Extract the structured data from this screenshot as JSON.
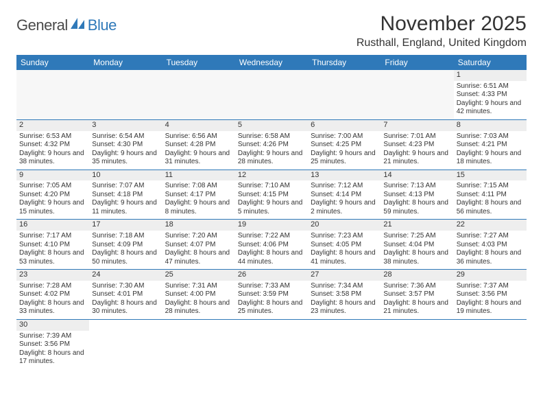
{
  "brand": {
    "part1": "General",
    "part2": "Blue"
  },
  "title": "November 2025",
  "location": "Rusthall, England, United Kingdom",
  "colors": {
    "headerBg": "#2f79b9",
    "headerText": "#ffffff",
    "dayNumBg": "#eeeeee",
    "ruleColor": "#2f79b9",
    "emptyBg": "#f7f7f7"
  },
  "dayHeaders": [
    "Sunday",
    "Monday",
    "Tuesday",
    "Wednesday",
    "Thursday",
    "Friday",
    "Saturday"
  ],
  "weeks": [
    [
      null,
      null,
      null,
      null,
      null,
      null,
      {
        "n": "1",
        "sunrise": "6:51 AM",
        "sunset": "4:33 PM",
        "daylight": "9 hours and 42 minutes."
      }
    ],
    [
      {
        "n": "2",
        "sunrise": "6:53 AM",
        "sunset": "4:32 PM",
        "daylight": "9 hours and 38 minutes."
      },
      {
        "n": "3",
        "sunrise": "6:54 AM",
        "sunset": "4:30 PM",
        "daylight": "9 hours and 35 minutes."
      },
      {
        "n": "4",
        "sunrise": "6:56 AM",
        "sunset": "4:28 PM",
        "daylight": "9 hours and 31 minutes."
      },
      {
        "n": "5",
        "sunrise": "6:58 AM",
        "sunset": "4:26 PM",
        "daylight": "9 hours and 28 minutes."
      },
      {
        "n": "6",
        "sunrise": "7:00 AM",
        "sunset": "4:25 PM",
        "daylight": "9 hours and 25 minutes."
      },
      {
        "n": "7",
        "sunrise": "7:01 AM",
        "sunset": "4:23 PM",
        "daylight": "9 hours and 21 minutes."
      },
      {
        "n": "8",
        "sunrise": "7:03 AM",
        "sunset": "4:21 PM",
        "daylight": "9 hours and 18 minutes."
      }
    ],
    [
      {
        "n": "9",
        "sunrise": "7:05 AM",
        "sunset": "4:20 PM",
        "daylight": "9 hours and 15 minutes."
      },
      {
        "n": "10",
        "sunrise": "7:07 AM",
        "sunset": "4:18 PM",
        "daylight": "9 hours and 11 minutes."
      },
      {
        "n": "11",
        "sunrise": "7:08 AM",
        "sunset": "4:17 PM",
        "daylight": "9 hours and 8 minutes."
      },
      {
        "n": "12",
        "sunrise": "7:10 AM",
        "sunset": "4:15 PM",
        "daylight": "9 hours and 5 minutes."
      },
      {
        "n": "13",
        "sunrise": "7:12 AM",
        "sunset": "4:14 PM",
        "daylight": "9 hours and 2 minutes."
      },
      {
        "n": "14",
        "sunrise": "7:13 AM",
        "sunset": "4:13 PM",
        "daylight": "8 hours and 59 minutes."
      },
      {
        "n": "15",
        "sunrise": "7:15 AM",
        "sunset": "4:11 PM",
        "daylight": "8 hours and 56 minutes."
      }
    ],
    [
      {
        "n": "16",
        "sunrise": "7:17 AM",
        "sunset": "4:10 PM",
        "daylight": "8 hours and 53 minutes."
      },
      {
        "n": "17",
        "sunrise": "7:18 AM",
        "sunset": "4:09 PM",
        "daylight": "8 hours and 50 minutes."
      },
      {
        "n": "18",
        "sunrise": "7:20 AM",
        "sunset": "4:07 PM",
        "daylight": "8 hours and 47 minutes."
      },
      {
        "n": "19",
        "sunrise": "7:22 AM",
        "sunset": "4:06 PM",
        "daylight": "8 hours and 44 minutes."
      },
      {
        "n": "20",
        "sunrise": "7:23 AM",
        "sunset": "4:05 PM",
        "daylight": "8 hours and 41 minutes."
      },
      {
        "n": "21",
        "sunrise": "7:25 AM",
        "sunset": "4:04 PM",
        "daylight": "8 hours and 38 minutes."
      },
      {
        "n": "22",
        "sunrise": "7:27 AM",
        "sunset": "4:03 PM",
        "daylight": "8 hours and 36 minutes."
      }
    ],
    [
      {
        "n": "23",
        "sunrise": "7:28 AM",
        "sunset": "4:02 PM",
        "daylight": "8 hours and 33 minutes."
      },
      {
        "n": "24",
        "sunrise": "7:30 AM",
        "sunset": "4:01 PM",
        "daylight": "8 hours and 30 minutes."
      },
      {
        "n": "25",
        "sunrise": "7:31 AM",
        "sunset": "4:00 PM",
        "daylight": "8 hours and 28 minutes."
      },
      {
        "n": "26",
        "sunrise": "7:33 AM",
        "sunset": "3:59 PM",
        "daylight": "8 hours and 25 minutes."
      },
      {
        "n": "27",
        "sunrise": "7:34 AM",
        "sunset": "3:58 PM",
        "daylight": "8 hours and 23 minutes."
      },
      {
        "n": "28",
        "sunrise": "7:36 AM",
        "sunset": "3:57 PM",
        "daylight": "8 hours and 21 minutes."
      },
      {
        "n": "29",
        "sunrise": "7:37 AM",
        "sunset": "3:56 PM",
        "daylight": "8 hours and 19 minutes."
      }
    ],
    [
      {
        "n": "30",
        "sunrise": "7:39 AM",
        "sunset": "3:56 PM",
        "daylight": "8 hours and 17 minutes."
      },
      null,
      null,
      null,
      null,
      null,
      null
    ]
  ],
  "labels": {
    "sunrise": "Sunrise: ",
    "sunset": "Sunset: ",
    "daylight": "Daylight: "
  }
}
